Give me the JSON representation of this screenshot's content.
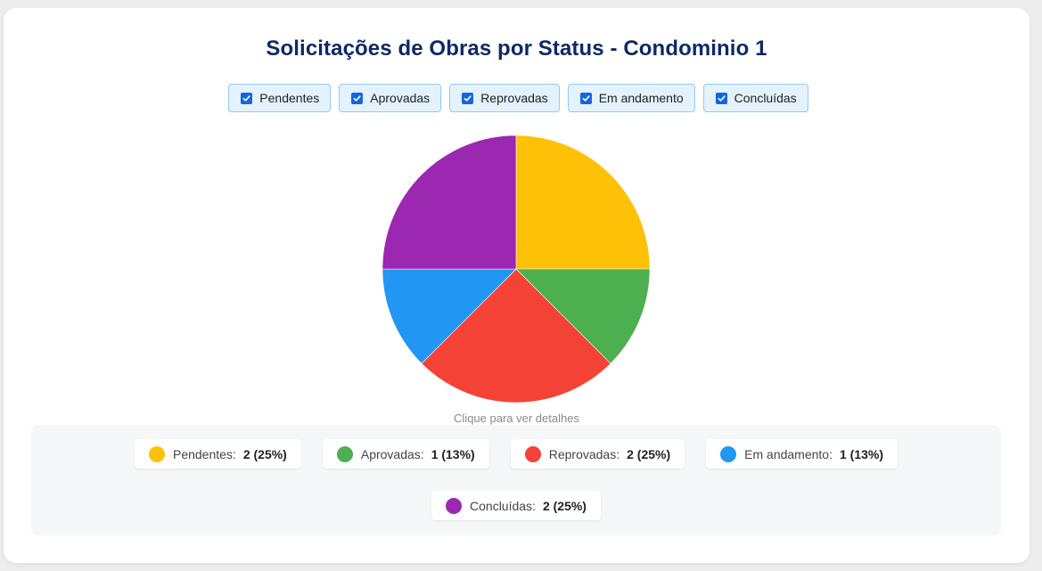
{
  "title": "Solicitações de Obras por Status - Condominio 1",
  "filters": [
    {
      "label": "Pendentes",
      "checked": true
    },
    {
      "label": "Aprovadas",
      "checked": true
    },
    {
      "label": "Reprovadas",
      "checked": true
    },
    {
      "label": "Em andamento",
      "checked": true
    },
    {
      "label": "Concluídas",
      "checked": true
    }
  ],
  "hint": "Clique para ver detalhes",
  "legend": [
    {
      "label": "Pendentes:",
      "value": "2 (25%)",
      "color": "#FFC107"
    },
    {
      "label": "Aprovadas:",
      "value": "1 (13%)",
      "color": "#4CAF50"
    },
    {
      "label": "Reprovadas:",
      "value": "2 (25%)",
      "color": "#F44336"
    },
    {
      "label": "Em andamento:",
      "value": "1 (13%)",
      "color": "#2196F3"
    },
    {
      "label": "Concluídas:",
      "value": "2 (25%)",
      "color": "#9C27B0"
    }
  ],
  "chart_data": {
    "type": "pie",
    "title": "Solicitações de Obras por Status - Condominio 1",
    "categories": [
      "Pendentes",
      "Aprovadas",
      "Reprovadas",
      "Em andamento",
      "Concluídas"
    ],
    "values": [
      2,
      1,
      2,
      1,
      2
    ],
    "percentages": [
      25,
      13,
      25,
      13,
      25
    ],
    "colors": [
      "#FFC107",
      "#4CAF50",
      "#F44336",
      "#2196F3",
      "#9C27B0"
    ],
    "start_angle": "12 o'clock, clockwise",
    "legend_position": "bottom",
    "annotation": "Clique para ver detalhes"
  }
}
